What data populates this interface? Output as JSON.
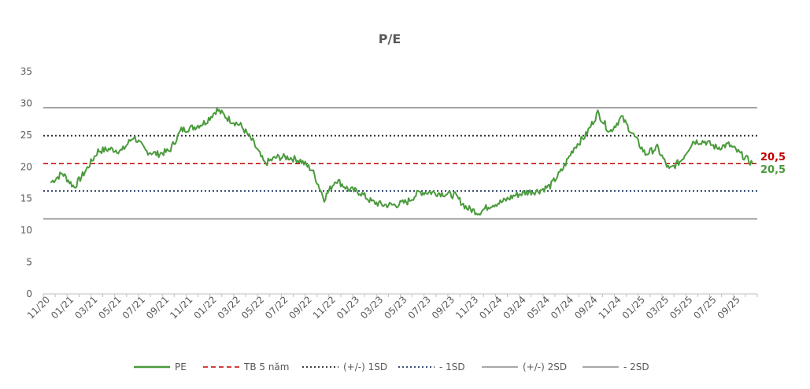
{
  "chart_data": {
    "type": "line",
    "title": "P/E",
    "xlabel": "",
    "ylabel": "",
    "ylim": [
      0,
      35
    ],
    "yticks": [
      "0",
      "5",
      "10",
      "15",
      "20",
      "25",
      "30",
      "35"
    ],
    "x_ticks": [
      "11/20",
      "01/21",
      "03/21",
      "05/21",
      "07/21",
      "09/21",
      "11/21",
      "01/22",
      "03/22",
      "05/22",
      "07/22",
      "09/22",
      "11/22",
      "01/23",
      "03/23",
      "05/23",
      "07/23",
      "09/23",
      "11/23",
      "01/24",
      "03/24",
      "05/24",
      "07/24",
      "09/24",
      "11/24",
      "01/25",
      "03/25",
      "05/25",
      "07/25",
      "09/25"
    ],
    "grid": false,
    "legend_position": "bottom",
    "series": [
      {
        "name": "PE",
        "color": "#4a9a3c",
        "x": [
          "2020-11",
          "2020-12",
          "2021-01",
          "2021-02",
          "2021-03",
          "2021-04",
          "2021-05",
          "2021-06",
          "2021-07",
          "2021-08",
          "2021-09",
          "2021-10",
          "2021-11",
          "2021-12",
          "2022-01",
          "2022-02",
          "2022-03",
          "2022-04",
          "2022-05",
          "2022-06",
          "2022-07",
          "2022-08",
          "2022-09",
          "2022-10",
          "2022-11",
          "2022-12",
          "2023-01",
          "2023-02",
          "2023-03",
          "2023-04",
          "2023-05",
          "2023-06",
          "2023-07",
          "2023-08",
          "2023-09",
          "2023-10",
          "2023-11",
          "2023-12",
          "2024-01",
          "2024-02",
          "2024-03",
          "2024-04",
          "2024-05",
          "2024-06",
          "2024-07",
          "2024-08",
          "2024-09",
          "2024-10",
          "2024-11",
          "2024-12",
          "2025-01",
          "2025-02",
          "2025-03",
          "2025-04",
          "2025-05",
          "2025-06",
          "2025-07",
          "2025-08",
          "2025-09",
          "2025-10"
        ],
        "values": [
          17.5,
          19.0,
          16.8,
          19.5,
          22.5,
          22.8,
          22.5,
          24.8,
          22.5,
          22.0,
          22.5,
          25.8,
          26.2,
          27.0,
          29.0,
          27.5,
          26.5,
          24.0,
          20.5,
          21.5,
          21.5,
          21.0,
          19.5,
          15.0,
          18.0,
          16.5,
          16.0,
          14.5,
          14.0,
          14.0,
          14.5,
          16.0,
          16.0,
          15.8,
          15.5,
          13.5,
          12.8,
          14.0,
          14.5,
          15.5,
          16.0,
          16.2,
          17.0,
          19.5,
          23.0,
          25.0,
          28.5,
          25.5,
          27.8,
          25.0,
          22.0,
          23.0,
          19.5,
          21.0,
          24.0,
          24.0,
          23.0,
          23.5,
          22.0,
          20.5
        ]
      },
      {
        "name": "TB 5 năm",
        "color": "#c00000",
        "value": 20.5
      },
      {
        "name": "(+/-) 1SD",
        "color": "#262626",
        "value": 24.9
      },
      {
        "name": "- 1SD",
        "color": "#1f3864",
        "value": 16.2
      },
      {
        "name": "(+/-) 2SD",
        "color": "#8c8c8c",
        "value": 29.3
      },
      {
        "name": "- 2SD",
        "color": "#8c8c8c",
        "value": 11.8
      }
    ],
    "end_labels": [
      {
        "text": "20,5",
        "color": "#c00000"
      },
      {
        "text": "20,5",
        "color": "#4a9a3c"
      }
    ]
  }
}
